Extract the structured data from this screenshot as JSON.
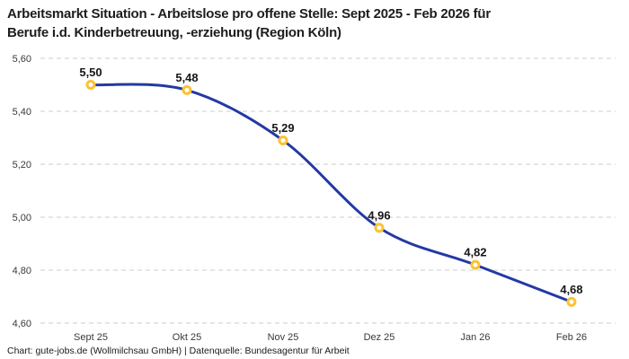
{
  "title": {
    "line1": "Arbeitsmarkt Situation - Arbeitslose pro offene Stelle: Sept 2025 - Feb 2026 für",
    "line2": "Berufe i.d. Kinderbetreuung, -erziehung (Region Köln)"
  },
  "footer": {
    "text": "Chart: gute-jobs.de (Wollmilchsau GmbH) | Datenquelle: Bundesagentur für Arbeit"
  },
  "chart_data": {
    "type": "line",
    "title": "Arbeitsmarkt Situation - Arbeitslose pro offene Stelle: Sept 2025 - Feb 2026 für Berufe i.d. Kinderbetreuung, -erziehung (Region Köln)",
    "categories": [
      "Sept 25",
      "Okt 25",
      "Nov 25",
      "Dez 25",
      "Jan 26",
      "Feb 26"
    ],
    "values": [
      5.5,
      5.48,
      5.29,
      4.96,
      4.82,
      4.68
    ],
    "point_labels": [
      "5,50",
      "5,48",
      "5,29",
      "4,96",
      "4,82",
      "4,68"
    ],
    "xlabel": "",
    "ylabel": "",
    "ylim": [
      4.6,
      5.6
    ],
    "ytick_values": [
      5.6,
      5.4,
      5.2,
      5.0,
      4.8,
      4.6
    ],
    "ytick_labels": [
      "5,60",
      "5,40",
      "5,20",
      "5,00",
      "4,80",
      "4,60"
    ],
    "grid": "horizontal-dashed",
    "legend": "none",
    "smoothing": "spline",
    "colors": {
      "line": "#2339a4",
      "marker_ring": "#fbc232",
      "marker_fill": "#ffffff",
      "gridline": "#cccccc",
      "point_label_text": "#161616",
      "tick_text": "#3a3a3a"
    }
  }
}
